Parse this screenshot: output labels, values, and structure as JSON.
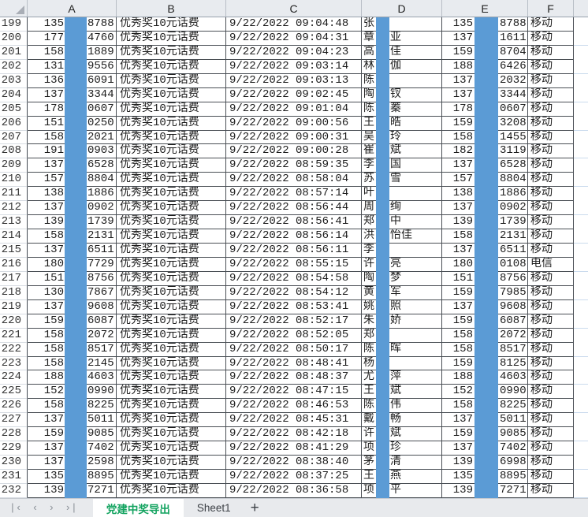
{
  "columns": {
    "letters": [
      "A",
      "B",
      "C",
      "D",
      "E",
      "F"
    ],
    "corner_icon": "select-all-triangle"
  },
  "colors": {
    "redaction_bar": "#5b9bd5",
    "active_tab_green": "#12a35f"
  },
  "redaction_bars": [
    "phone-a-middle-digits",
    "name-second-char",
    "phone-e-middle-digits"
  ],
  "row_fields": [
    "row_number",
    "phone1_prefix",
    "phone1_suffix",
    "prize",
    "timestamp",
    "name_first_char",
    "name_visible_rest",
    "phone2_prefix",
    "phone2_suffix",
    "carrier"
  ],
  "rows": [
    [
      "199",
      "135",
      "8788",
      "优秀奖10元话费",
      "9/22/2022 09:04:48",
      "张",
      "",
      "135",
      "8788",
      "移动"
    ],
    [
      "200",
      "177",
      "4760",
      "优秀奖10元话费",
      "9/22/2022 09:04:31",
      "章",
      "亚",
      "137",
      "1611",
      "移动"
    ],
    [
      "201",
      "158",
      "1889",
      "优秀奖10元话费",
      "9/22/2022 09:04:23",
      "高",
      "佳",
      "159",
      "8704",
      "移动"
    ],
    [
      "202",
      "131",
      "9556",
      "优秀奖10元话费",
      "9/22/2022 09:03:14",
      "林",
      "伽",
      "188",
      "6426",
      "移动"
    ],
    [
      "203",
      "136",
      "6091",
      "优秀奖10元话费",
      "9/22/2022 09:03:13",
      "陈",
      "",
      "137",
      "2032",
      "移动"
    ],
    [
      "204",
      "137",
      "3344",
      "优秀奖10元话费",
      "9/22/2022 09:02:45",
      "陶",
      "钗",
      "137",
      "3344",
      "移动"
    ],
    [
      "205",
      "178",
      "0607",
      "优秀奖10元话费",
      "9/22/2022 09:01:04",
      "陈",
      "蓁",
      "178",
      "0607",
      "移动"
    ],
    [
      "206",
      "151",
      "0250",
      "优秀奖10元话费",
      "9/22/2022 09:00:56",
      "王",
      "皓",
      "159",
      "3208",
      "移动"
    ],
    [
      "207",
      "158",
      "2021",
      "优秀奖10元话费",
      "9/22/2022 09:00:31",
      "吴",
      "玲",
      "158",
      "1455",
      "移动"
    ],
    [
      "208",
      "191",
      "0903",
      "优秀奖10元话费",
      "9/22/2022 09:00:28",
      "崔",
      "斌",
      "182",
      "3119",
      "移动"
    ],
    [
      "209",
      "137",
      "6528",
      "优秀奖10元话费",
      "9/22/2022 08:59:35",
      "李",
      "国",
      "137",
      "6528",
      "移动"
    ],
    [
      "210",
      "157",
      "8804",
      "优秀奖10元话费",
      "9/22/2022 08:58:04",
      "苏",
      "雪",
      "157",
      "8804",
      "移动"
    ],
    [
      "211",
      "138",
      "1886",
      "优秀奖10元话费",
      "9/22/2022 08:57:14",
      "叶",
      "",
      "138",
      "1886",
      "移动"
    ],
    [
      "212",
      "137",
      "0902",
      "优秀奖10元话费",
      "9/22/2022 08:56:44",
      "周",
      "绚",
      "137",
      "0902",
      "移动"
    ],
    [
      "213",
      "139",
      "1739",
      "优秀奖10元话费",
      "9/22/2022 08:56:41",
      "郑",
      "中",
      "139",
      "1739",
      "移动"
    ],
    [
      "214",
      "158",
      "2131",
      "优秀奖10元话费",
      "9/22/2022 08:56:14",
      "洪",
      "怡佳",
      "158",
      "2131",
      "移动"
    ],
    [
      "215",
      "137",
      "6511",
      "优秀奖10元话费",
      "9/22/2022 08:56:11",
      "李",
      "",
      "137",
      "6511",
      "移动"
    ],
    [
      "216",
      "180",
      "7729",
      "优秀奖10元话费",
      "9/22/2022 08:55:15",
      "许",
      "亮",
      "180",
      "0108",
      "电信"
    ],
    [
      "217",
      "151",
      "8756",
      "优秀奖10元话费",
      "9/22/2022 08:54:58",
      "陶",
      "梦",
      "151",
      "8756",
      "移动"
    ],
    [
      "218",
      "130",
      "7867",
      "优秀奖10元话费",
      "9/22/2022 08:54:12",
      "黄",
      "军",
      "159",
      "7985",
      "移动"
    ],
    [
      "219",
      "137",
      "9608",
      "优秀奖10元话费",
      "9/22/2022 08:53:41",
      "姚",
      "照",
      "137",
      "9608",
      "移动"
    ],
    [
      "220",
      "159",
      "6087",
      "优秀奖10元话费",
      "9/22/2022 08:52:17",
      "朱",
      "娇",
      "159",
      "6087",
      "移动"
    ],
    [
      "221",
      "158",
      "2072",
      "优秀奖10元话费",
      "9/22/2022 08:52:05",
      "郑",
      "",
      "158",
      "2072",
      "移动"
    ],
    [
      "222",
      "158",
      "8517",
      "优秀奖10元话费",
      "9/22/2022 08:50:17",
      "陈",
      "晖",
      "158",
      "8517",
      "移动"
    ],
    [
      "223",
      "158",
      "2145",
      "优秀奖10元话费",
      "9/22/2022 08:48:41",
      "杨",
      "",
      "159",
      "8125",
      "移动"
    ],
    [
      "224",
      "188",
      "4603",
      "优秀奖10元话费",
      "9/22/2022 08:48:37",
      "尤",
      "萍",
      "188",
      "4603",
      "移动"
    ],
    [
      "225",
      "152",
      "0990",
      "优秀奖10元话费",
      "9/22/2022 08:47:15",
      "王",
      "斌",
      "152",
      "0990",
      "移动"
    ],
    [
      "226",
      "158",
      "8225",
      "优秀奖10元话费",
      "9/22/2022 08:46:53",
      "陈",
      "伟",
      "158",
      "8225",
      "移动"
    ],
    [
      "227",
      "137",
      "5011",
      "优秀奖10元话费",
      "9/22/2022 08:45:31",
      "戴",
      "畅",
      "137",
      "5011",
      "移动"
    ],
    [
      "228",
      "159",
      "9085",
      "优秀奖10元话费",
      "9/22/2022 08:42:18",
      "许",
      "斌",
      "159",
      "9085",
      "移动"
    ],
    [
      "229",
      "137",
      "7402",
      "优秀奖10元话费",
      "9/22/2022 08:41:29",
      "项",
      "珍",
      "137",
      "7402",
      "移动"
    ],
    [
      "230",
      "137",
      "2598",
      "优秀奖10元话费",
      "9/22/2022 08:38:40",
      "茅",
      "清",
      "139",
      "6998",
      "移动"
    ],
    [
      "231",
      "135",
      "8895",
      "优秀奖10元话费",
      "9/22/2022 08:37:25",
      "王",
      "燕",
      "135",
      "8895",
      "移动"
    ],
    [
      "232",
      "139",
      "7271",
      "优秀奖10元话费",
      "9/22/2022 08:36:58",
      "项",
      "平",
      "139",
      "7271",
      "移动"
    ]
  ],
  "tab_bar": {
    "nav": [
      {
        "name": "first-sheet-button",
        "glyph": "|‹"
      },
      {
        "name": "prev-sheet-button",
        "glyph": "‹"
      },
      {
        "name": "next-sheet-button",
        "glyph": "›"
      },
      {
        "name": "last-sheet-button",
        "glyph": "›|"
      }
    ],
    "tabs": [
      {
        "label": "党建中奖导出",
        "active": true
      },
      {
        "label": "Sheet1",
        "active": false
      }
    ],
    "add_sheet_label": "+"
  }
}
